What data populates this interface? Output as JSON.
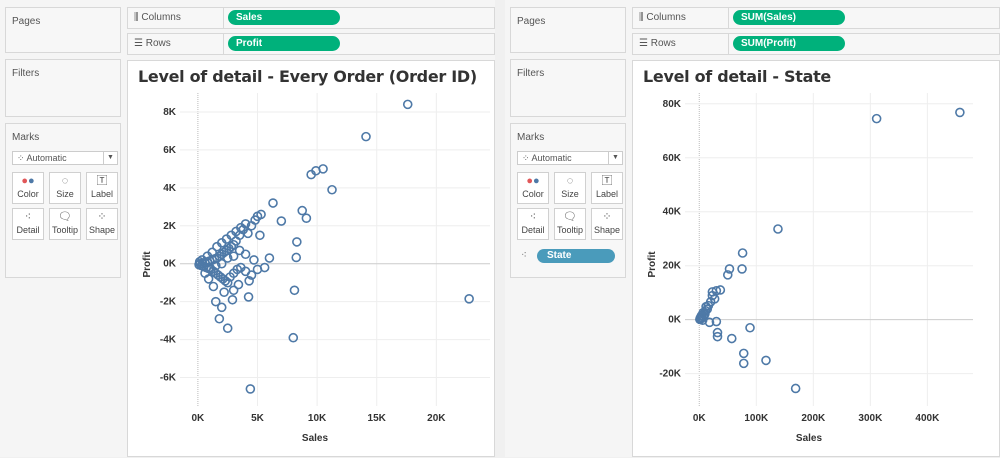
{
  "panels": [
    {
      "pages_label": "Pages",
      "filters_label": "Filters",
      "marks_label": "Marks",
      "mark_type": "Automatic",
      "mark_buttons": [
        "Color",
        "Size",
        "Label",
        "Detail",
        "Tooltip",
        "Shape"
      ],
      "columns_label": "Columns",
      "rows_label": "Rows",
      "columns_pill": "Sales",
      "rows_pill": "Profit",
      "detail_pill": null,
      "title": "Level of detail - Every Order (Order ID)"
    },
    {
      "pages_label": "Pages",
      "filters_label": "Filters",
      "marks_label": "Marks",
      "mark_type": "Automatic",
      "mark_buttons": [
        "Color",
        "Size",
        "Label",
        "Detail",
        "Tooltip",
        "Shape"
      ],
      "columns_label": "Columns",
      "rows_label": "Rows",
      "columns_pill": "SUM(Sales)",
      "rows_pill": "SUM(Profit)",
      "detail_pill": "State",
      "title": "Level of detail - State"
    }
  ],
  "colors": {
    "pill": "#00b17b",
    "detail_pill": "#4a9bbb",
    "mark": "#4e79a7"
  },
  "chart_data": [
    {
      "type": "scatter",
      "xlabel": "Sales",
      "ylabel": "Profit",
      "xlim": [
        -1500,
        24500
      ],
      "ylim": [
        -7500,
        9000
      ],
      "xticks": [
        0,
        5000,
        10000,
        15000,
        20000
      ],
      "xtick_labels": [
        "0K",
        "5K",
        "10K",
        "15K",
        "20K"
      ],
      "yticks": [
        -6000,
        -4000,
        -2000,
        0,
        2000,
        4000,
        6000,
        8000
      ],
      "ytick_labels": [
        "-6K",
        "-4K",
        "-2K",
        "0K",
        "2K",
        "4K",
        "6K",
        "8K"
      ],
      "grid": true,
      "marker": "open-circle",
      "points": [
        [
          17600,
          8400
        ],
        [
          14100,
          6700
        ],
        [
          9500,
          4700
        ],
        [
          9900,
          4900
        ],
        [
          10500,
          5000
        ],
        [
          11250,
          3900
        ],
        [
          6300,
          3200
        ],
        [
          8750,
          2800
        ],
        [
          9100,
          2400
        ],
        [
          7000,
          2250
        ],
        [
          8300,
          1150
        ],
        [
          8250,
          330
        ],
        [
          8100,
          -1400
        ],
        [
          8000,
          -3900
        ],
        [
          22750,
          -1850
        ],
        [
          4400,
          -6600
        ],
        [
          4250,
          -1750
        ],
        [
          2500,
          -3400
        ],
        [
          1800,
          -2900
        ],
        [
          2000,
          -2300
        ],
        [
          1500,
          -2000
        ],
        [
          3000,
          -1400
        ],
        [
          5000,
          2500
        ],
        [
          5300,
          2600
        ],
        [
          4800,
          2300
        ],
        [
          4500,
          2000
        ],
        [
          5200,
          1500
        ],
        [
          4200,
          1600
        ],
        [
          3800,
          1800
        ],
        [
          3500,
          1500
        ],
        [
          3200,
          1200
        ],
        [
          3000,
          1000
        ],
        [
          2800,
          900
        ],
        [
          2600,
          800
        ],
        [
          2400,
          700
        ],
        [
          2200,
          600
        ],
        [
          2000,
          500
        ],
        [
          1800,
          400
        ],
        [
          1600,
          300
        ],
        [
          1400,
          250
        ],
        [
          1200,
          200
        ],
        [
          1000,
          150
        ],
        [
          800,
          100
        ],
        [
          600,
          50
        ],
        [
          400,
          20
        ],
        [
          200,
          0
        ],
        [
          100,
          -50
        ],
        [
          300,
          -100
        ],
        [
          500,
          -150
        ],
        [
          700,
          -200
        ],
        [
          900,
          -250
        ],
        [
          1100,
          -300
        ],
        [
          1300,
          -400
        ],
        [
          1500,
          -500
        ],
        [
          1700,
          -600
        ],
        [
          1900,
          -700
        ],
        [
          2100,
          -800
        ],
        [
          2300,
          -900
        ],
        [
          2500,
          -1000
        ],
        [
          2700,
          -700
        ],
        [
          3000,
          -500
        ],
        [
          3300,
          -300
        ],
        [
          3600,
          -200
        ],
        [
          4000,
          -400
        ],
        [
          4500,
          -600
        ],
        [
          5000,
          -300
        ],
        [
          4700,
          200
        ],
        [
          4000,
          500
        ],
        [
          3500,
          700
        ],
        [
          3000,
          400
        ],
        [
          2500,
          300
        ],
        [
          2000,
          0
        ],
        [
          1500,
          -100
        ],
        [
          1000,
          -200
        ],
        [
          800,
          400
        ],
        [
          1200,
          600
        ],
        [
          1600,
          900
        ],
        [
          2000,
          1100
        ],
        [
          2400,
          1300
        ],
        [
          2800,
          1500
        ],
        [
          3200,
          1700
        ],
        [
          3600,
          1900
        ],
        [
          4000,
          2100
        ],
        [
          1300,
          -1200
        ],
        [
          900,
          -800
        ],
        [
          600,
          -500
        ],
        [
          350,
          200
        ],
        [
          150,
          100
        ],
        [
          2200,
          -1500
        ],
        [
          2900,
          -1900
        ],
        [
          3400,
          -1100
        ],
        [
          4300,
          -900
        ],
        [
          5600,
          -200
        ],
        [
          6000,
          300
        ]
      ]
    },
    {
      "type": "scatter",
      "xlabel": "Sales",
      "ylabel": "Profit",
      "xlim": [
        -25000,
        480000
      ],
      "ylim": [
        -32000,
        84000
      ],
      "xticks": [
        0,
        100000,
        200000,
        300000,
        400000
      ],
      "xtick_labels": [
        "0K",
        "100K",
        "200K",
        "300K",
        "400K"
      ],
      "yticks": [
        -20000,
        0,
        20000,
        40000,
        60000,
        80000
      ],
      "ytick_labels": [
        "-20K",
        "0K",
        "20K",
        "40K",
        "60K",
        "80K"
      ],
      "grid": true,
      "marker": "open-circle",
      "points": [
        [
          457000,
          76800
        ],
        [
          311000,
          74500
        ],
        [
          138000,
          33600
        ],
        [
          76000,
          24700
        ],
        [
          75000,
          18800
        ],
        [
          53000,
          18800
        ],
        [
          50000,
          16600
        ],
        [
          89000,
          -3000
        ],
        [
          78000,
          -12500
        ],
        [
          78000,
          -16200
        ],
        [
          117000,
          -15100
        ],
        [
          169000,
          -25500
        ],
        [
          57000,
          -7000
        ],
        [
          30000,
          -700
        ],
        [
          18000,
          -1000
        ],
        [
          32000,
          -4800
        ],
        [
          32000,
          -6300
        ],
        [
          30000,
          10700
        ],
        [
          37000,
          11000
        ],
        [
          23000,
          8900
        ],
        [
          27000,
          7700
        ],
        [
          20000,
          6600
        ],
        [
          12000,
          4800
        ],
        [
          11000,
          3300
        ],
        [
          7000,
          2600
        ],
        [
          4000,
          1500
        ],
        [
          2000,
          700
        ],
        [
          5000,
          700
        ],
        [
          9000,
          1800
        ],
        [
          16000,
          5200
        ],
        [
          23000,
          10300
        ],
        [
          3000,
          300
        ],
        [
          1000,
          100
        ],
        [
          6000,
          -200
        ],
        [
          14000,
          3900
        ],
        [
          8000,
          1000
        ],
        [
          10000,
          2200
        ]
      ]
    }
  ]
}
